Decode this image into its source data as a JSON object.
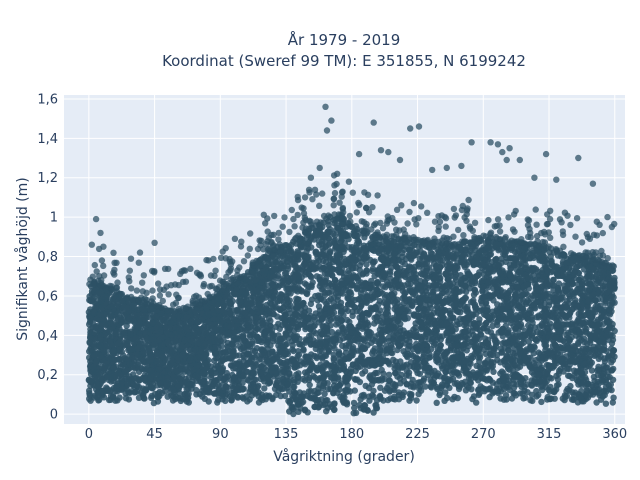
{
  "chart_data": {
    "type": "scatter",
    "title": "År 1979 - 2019",
    "subtitle": "Koordinat (Sweref 99 TM): E 351855, N 6199242",
    "xlabel": "Vågriktning (grader)",
    "ylabel": "Signifikant våghöjd (m)",
    "xlim": [
      -17,
      367
    ],
    "ylim": [
      -0.05,
      1.62
    ],
    "x_ticks": [
      0,
      45,
      90,
      135,
      180,
      225,
      270,
      315,
      360
    ],
    "x_tick_labels": [
      "0",
      "45",
      "90",
      "135",
      "180",
      "225",
      "270",
      "315",
      "360"
    ],
    "y_ticks": [
      0,
      0.2,
      0.4,
      0.6,
      0.8,
      1.0,
      1.2,
      1.4,
      1.6
    ],
    "y_tick_labels": [
      "0",
      "0,2",
      "0,4",
      "0,6",
      "0,8",
      "1",
      "1,2",
      "1,4",
      "1,6"
    ],
    "grid": true,
    "marker_color": "#2e5266",
    "plot_background": "#e5ecf6",
    "upper_envelope": {
      "x": [
        0,
        10,
        20,
        30,
        45,
        60,
        75,
        90,
        105,
        120,
        135,
        150,
        160,
        170,
        180,
        200,
        225,
        250,
        270,
        290,
        315,
        340,
        360
      ],
      "y": [
        0.66,
        0.65,
        0.62,
        0.58,
        0.55,
        0.52,
        0.55,
        0.62,
        0.7,
        0.8,
        0.86,
        0.93,
        0.98,
        1.02,
        0.95,
        0.9,
        0.88,
        0.86,
        0.9,
        0.88,
        0.84,
        0.8,
        0.75
      ]
    },
    "outliers": [
      {
        "x": 5,
        "y": 0.99
      },
      {
        "x": 8,
        "y": 0.92
      },
      {
        "x": 2,
        "y": 0.86
      },
      {
        "x": 10,
        "y": 0.85
      },
      {
        "x": 35,
        "y": 0.82
      },
      {
        "x": 45,
        "y": 0.87
      },
      {
        "x": 65,
        "y": 0.73
      },
      {
        "x": 100,
        "y": 0.89
      },
      {
        "x": 118,
        "y": 0.88
      },
      {
        "x": 130,
        "y": 0.92
      },
      {
        "x": 140,
        "y": 0.99
      },
      {
        "x": 148,
        "y": 1.1
      },
      {
        "x": 152,
        "y": 1.2
      },
      {
        "x": 158,
        "y": 1.25
      },
      {
        "x": 162,
        "y": 1.56
      },
      {
        "x": 166,
        "y": 1.49
      },
      {
        "x": 163,
        "y": 1.44
      },
      {
        "x": 170,
        "y": 1.22
      },
      {
        "x": 178,
        "y": 1.18
      },
      {
        "x": 185,
        "y": 1.32
      },
      {
        "x": 195,
        "y": 1.48
      },
      {
        "x": 200,
        "y": 1.34
      },
      {
        "x": 205,
        "y": 1.33
      },
      {
        "x": 213,
        "y": 1.29
      },
      {
        "x": 220,
        "y": 1.45
      },
      {
        "x": 226,
        "y": 1.46
      },
      {
        "x": 235,
        "y": 1.24
      },
      {
        "x": 245,
        "y": 1.25
      },
      {
        "x": 255,
        "y": 1.26
      },
      {
        "x": 262,
        "y": 1.38
      },
      {
        "x": 275,
        "y": 1.38
      },
      {
        "x": 280,
        "y": 1.37
      },
      {
        "x": 283,
        "y": 1.33
      },
      {
        "x": 286,
        "y": 1.29
      },
      {
        "x": 288,
        "y": 1.35
      },
      {
        "x": 295,
        "y": 1.29
      },
      {
        "x": 305,
        "y": 1.2
      },
      {
        "x": 313,
        "y": 1.32
      },
      {
        "x": 320,
        "y": 1.19
      },
      {
        "x": 335,
        "y": 1.3
      },
      {
        "x": 345,
        "y": 1.17
      },
      {
        "x": 355,
        "y": 1.0
      },
      {
        "x": 358,
        "y": 0.95
      }
    ],
    "sample_count": 7000
  }
}
